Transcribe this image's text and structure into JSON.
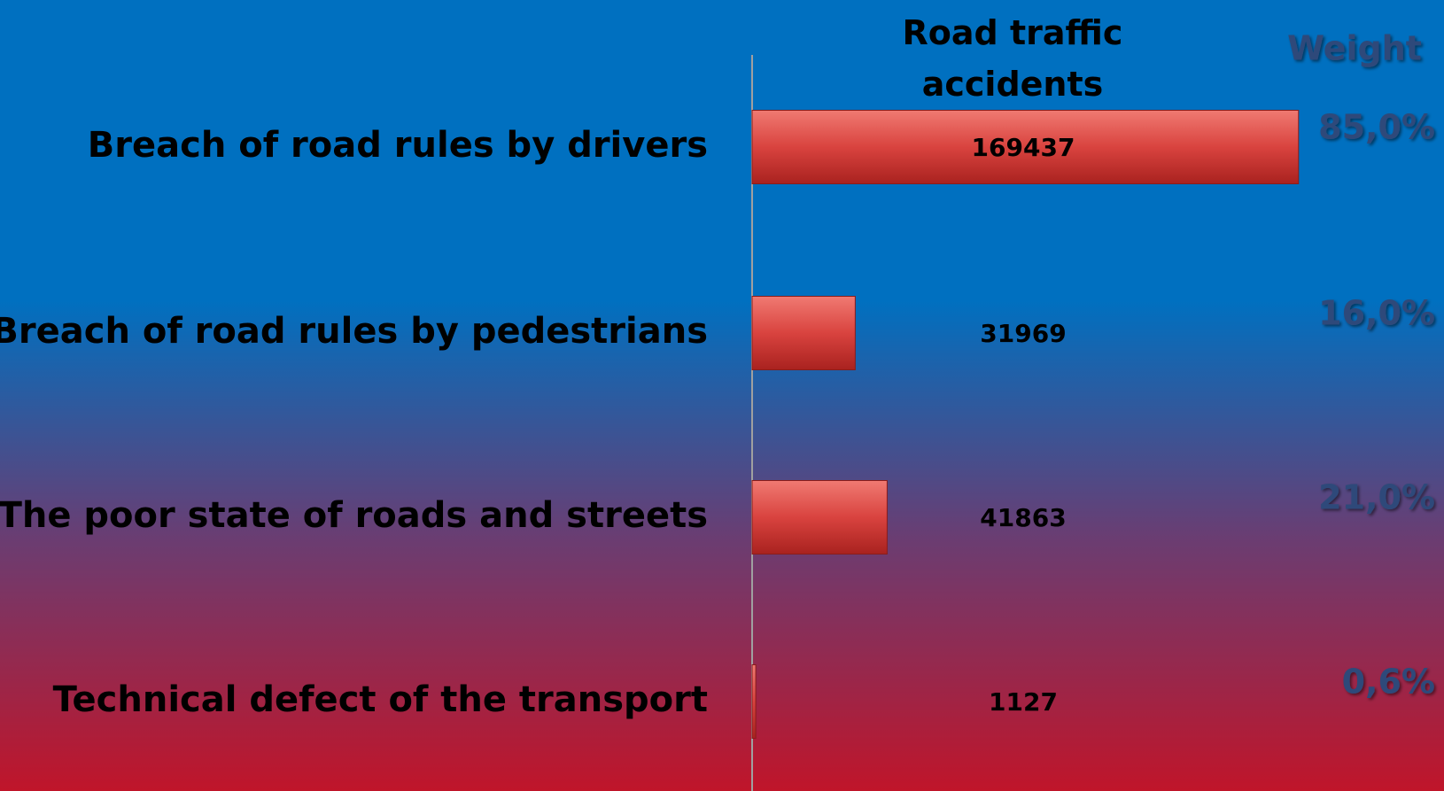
{
  "chart_data": {
    "type": "barh",
    "title": "Road traffic accidents",
    "categories": [
      "Breach of road rules by drivers",
      "Breach of road rules by pedestrians",
      "The poor state of roads and streets",
      "Technical defect of the transport"
    ],
    "values": [
      169437,
      31969,
      41863,
      1127
    ],
    "color": "#d9433f",
    "xlim": [
      0,
      200000
    ],
    "weights": {
      "name": "Weight",
      "values": [
        85,
        16,
        21,
        0.6
      ],
      "value_labels": [
        "85,0%",
        "16,0%",
        "21,0%",
        "0,6%"
      ]
    }
  }
}
